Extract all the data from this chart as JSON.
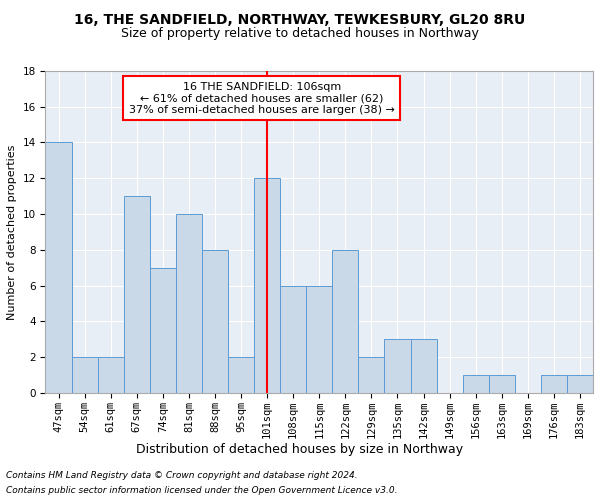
{
  "title1": "16, THE SANDFIELD, NORTHWAY, TEWKESBURY, GL20 8RU",
  "title2": "Size of property relative to detached houses in Northway",
  "xlabel": "Distribution of detached houses by size in Northway",
  "ylabel": "Number of detached properties",
  "categories": [
    "47sqm",
    "54sqm",
    "61sqm",
    "67sqm",
    "74sqm",
    "81sqm",
    "88sqm",
    "95sqm",
    "101sqm",
    "108sqm",
    "115sqm",
    "122sqm",
    "129sqm",
    "135sqm",
    "142sqm",
    "149sqm",
    "156sqm",
    "163sqm",
    "169sqm",
    "176sqm",
    "183sqm"
  ],
  "values": [
    14,
    2,
    2,
    11,
    7,
    10,
    8,
    2,
    12,
    6,
    6,
    8,
    2,
    3,
    3,
    0,
    1,
    1,
    0,
    1,
    1
  ],
  "bar_color": "#c9d9e8",
  "bar_edge_color": "#5b9bd5",
  "reference_line_x": 8,
  "reference_line_color": "red",
  "annotation_text": "16 THE SANDFIELD: 106sqm\n← 61% of detached houses are smaller (62)\n37% of semi-detached houses are larger (38) →",
  "annotation_box_color": "red",
  "ylim": [
    0,
    18
  ],
  "yticks": [
    0,
    2,
    4,
    6,
    8,
    10,
    12,
    14,
    16,
    18
  ],
  "background_color": "#e8eef5",
  "grid_color": "#ffffff",
  "footer_line1": "Contains HM Land Registry data © Crown copyright and database right 2024.",
  "footer_line2": "Contains public sector information licensed under the Open Government Licence v3.0.",
  "title1_fontsize": 10,
  "title2_fontsize": 9,
  "xlabel_fontsize": 9,
  "ylabel_fontsize": 8,
  "tick_fontsize": 7.5,
  "annotation_fontsize": 8,
  "footer_fontsize": 6.5
}
